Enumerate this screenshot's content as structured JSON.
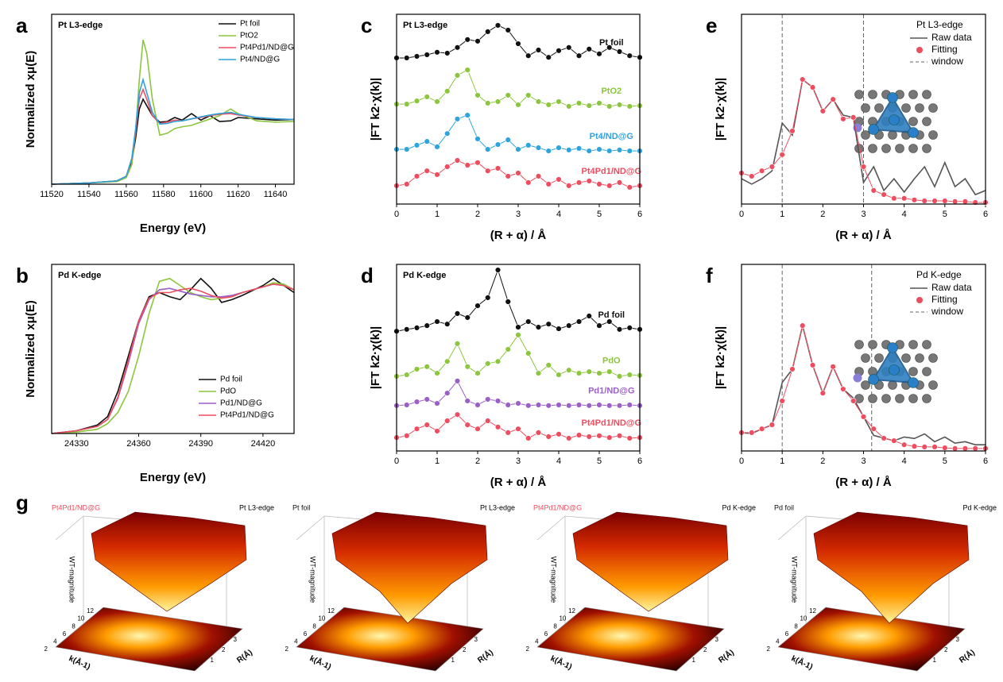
{
  "chart_data": [
    {
      "type": "line",
      "panel": "a",
      "title": "Pt L3-edge",
      "x_label": "Energy (eV)",
      "y_label": "Normalized xμ(E)",
      "xlim": [
        11520,
        11650
      ],
      "xticks": [
        11520,
        11540,
        11560,
        11580,
        11600,
        11620,
        11640
      ],
      "ylim": [
        0,
        2.6
      ],
      "legend": "upper right",
      "x": [
        11520,
        11540,
        11555,
        11560,
        11563,
        11565,
        11567,
        11569,
        11571,
        11574,
        11578,
        11582,
        11586,
        11590,
        11595,
        11600,
        11605,
        11610,
        11616,
        11620,
        11630,
        11640,
        11650
      ],
      "series": [
        {
          "name": "Pt foil",
          "color": "#111111",
          "values": [
            0,
            0.02,
            0.05,
            0.12,
            0.35,
            0.7,
            1.15,
            1.3,
            1.2,
            1.05,
            0.95,
            0.96,
            1.02,
            0.98,
            1.08,
            0.98,
            1.05,
            0.96,
            0.97,
            1.02,
            1.0,
            0.98,
            0.99
          ]
        },
        {
          "name": "PtO2",
          "color": "#8cc63e",
          "values": [
            0,
            0.02,
            0.04,
            0.1,
            0.3,
            0.8,
            1.6,
            2.21,
            2.0,
            1.3,
            0.75,
            0.78,
            0.85,
            0.88,
            0.9,
            0.95,
            1.0,
            1.05,
            1.15,
            1.08,
            0.97,
            0.95,
            0.96
          ]
        },
        {
          "name": "Pt4Pd1/ND@G",
          "color": "#ee4d5f",
          "values": [
            0,
            0.02,
            0.05,
            0.12,
            0.38,
            0.8,
            1.3,
            1.45,
            1.3,
            1.05,
            0.93,
            0.95,
            0.98,
            0.97,
            1.0,
            1.02,
            1.05,
            1.07,
            1.08,
            1.06,
            1.02,
            1.0,
            0.99
          ]
        },
        {
          "name": "Pt4/ND@G",
          "color": "#2da4dc",
          "values": [
            0,
            0.02,
            0.05,
            0.12,
            0.4,
            0.85,
            1.4,
            1.6,
            1.4,
            1.1,
            0.92,
            0.93,
            0.96,
            0.97,
            1.0,
            1.03,
            1.06,
            1.08,
            1.1,
            1.07,
            1.02,
            1.0,
            0.99
          ]
        }
      ]
    },
    {
      "type": "line",
      "panel": "b",
      "title": "Pd K-edge",
      "x_label": "Energy (eV)",
      "y_label": "Normalized xμ(E)",
      "xlim": [
        24318,
        24435
      ],
      "xticks": [
        24330,
        24360,
        24390,
        24420
      ],
      "ylim": [
        0,
        1.2
      ],
      "legend": "lower right",
      "x": [
        24318,
        24330,
        24340,
        24345,
        24350,
        24355,
        24360,
        24365,
        24370,
        24375,
        24380,
        24385,
        24390,
        24395,
        24400,
        24405,
        24410,
        24420,
        24425,
        24430,
        24435
      ],
      "series": [
        {
          "name": "Pd foil",
          "color": "#111111",
          "values": [
            0.0,
            0.02,
            0.06,
            0.12,
            0.3,
            0.55,
            0.8,
            0.97,
            1.0,
            0.97,
            0.95,
            1.02,
            1.1,
            1.03,
            0.93,
            0.95,
            0.98,
            1.05,
            1.1,
            1.05,
            1.0
          ]
        },
        {
          "name": "PdO",
          "color": "#8cc63e",
          "values": [
            0,
            0.01,
            0.03,
            0.07,
            0.15,
            0.3,
            0.55,
            0.85,
            1.08,
            1.1,
            1.05,
            1.0,
            0.97,
            0.95,
            0.96,
            0.98,
            1.0,
            1.04,
            1.07,
            1.06,
            1.02
          ]
        },
        {
          "name": "Pd1/ND@G",
          "color": "#9b5fc8",
          "values": [
            0,
            0.02,
            0.05,
            0.1,
            0.25,
            0.5,
            0.78,
            0.95,
            1.02,
            1.03,
            1.01,
            0.99,
            0.98,
            0.97,
            0.97,
            0.98,
            1.0,
            1.04,
            1.06,
            1.05,
            1.02
          ]
        },
        {
          "name": "Pt4Pd1/ND@G",
          "color": "#ee4d5f",
          "values": [
            0,
            0.02,
            0.05,
            0.1,
            0.26,
            0.52,
            0.8,
            0.96,
            1.0,
            1.0,
            1.02,
            1.03,
            1.01,
            0.98,
            0.96,
            0.97,
            1.0,
            1.04,
            1.06,
            1.05,
            1.02
          ]
        }
      ]
    },
    {
      "type": "line",
      "panel": "c",
      "title": "Pt L3-edge",
      "x_label": "(R + α) / Å",
      "y_label": "|FT k2·χ(k)|",
      "xlim": [
        0,
        6
      ],
      "xticks": [
        0,
        1,
        2,
        3,
        4,
        5,
        6
      ],
      "ylim": [
        0,
        6
      ],
      "x": [
        0,
        0.25,
        0.5,
        0.75,
        1,
        1.25,
        1.5,
        1.75,
        2,
        2.25,
        2.5,
        2.75,
        3,
        3.25,
        3.5,
        3.75,
        4,
        4.25,
        4.5,
        4.75,
        5,
        5.25,
        5.5,
        5.75,
        6
      ],
      "series": [
        {
          "name": "Pt foil",
          "color": "#111111",
          "marker": "circle",
          "values": [
            4.62,
            4.62,
            4.67,
            4.72,
            4.8,
            4.77,
            4.95,
            5.2,
            5.15,
            5.45,
            5.65,
            5.5,
            5.07,
            4.69,
            4.87,
            4.64,
            4.85,
            4.95,
            4.69,
            4.9,
            4.75,
            4.95,
            4.82,
            4.69,
            4.64
          ]
        },
        {
          "name": "PtO2",
          "color": "#8cc63e",
          "marker": "circle",
          "values": [
            3.16,
            3.16,
            3.26,
            3.39,
            3.24,
            3.57,
            4.07,
            4.24,
            3.44,
            3.19,
            3.24,
            3.44,
            3.14,
            3.44,
            3.24,
            3.14,
            3.24,
            3.09,
            3.19,
            3.11,
            3.19,
            3.09,
            3.14,
            3.09,
            3.11
          ]
        },
        {
          "name": "Pt4/ND@G",
          "color": "#2da4dc",
          "marker": "circle",
          "values": [
            1.73,
            1.73,
            1.86,
            1.98,
            1.81,
            2.23,
            2.69,
            2.81,
            2.06,
            1.73,
            1.88,
            2.03,
            1.73,
            1.86,
            1.78,
            1.68,
            1.78,
            1.71,
            1.76,
            1.68,
            1.73,
            1.68,
            1.71,
            1.68,
            1.68
          ]
        },
        {
          "name": "Pt4Pd1/ND@G",
          "color": "#ee4d5f",
          "marker": "circle",
          "values": [
            0.58,
            0.63,
            0.88,
            1.05,
            0.93,
            1.18,
            1.38,
            1.23,
            1.31,
            1.05,
            1.13,
            0.88,
            0.98,
            0.68,
            0.88,
            0.63,
            0.78,
            0.58,
            0.68,
            0.73,
            0.63,
            0.58,
            0.68,
            0.53,
            0.58
          ]
        }
      ]
    },
    {
      "type": "line",
      "panel": "d",
      "title": "Pd K-edge",
      "x_label": "(R + α) / Å",
      "y_label": "|FT k2·χ(k)|",
      "xlim": [
        0,
        6
      ],
      "xticks": [
        0,
        1,
        2,
        3,
        4,
        5,
        6
      ],
      "ylim": [
        0,
        6
      ],
      "x": [
        0,
        0.25,
        0.5,
        0.75,
        1,
        1.25,
        1.5,
        1.75,
        2,
        2.25,
        2.5,
        2.75,
        3,
        3.25,
        3.5,
        3.75,
        4,
        4.25,
        4.5,
        4.75,
        5,
        5.25,
        5.5,
        5.75,
        6
      ],
      "series": [
        {
          "name": "Pd foil",
          "color": "#111111",
          "marker": "circle",
          "values": [
            3.85,
            3.91,
            3.96,
            4.03,
            4.16,
            4.08,
            4.42,
            4.29,
            4.67,
            4.93,
            5.82,
            4.8,
            3.98,
            4.16,
            3.98,
            4.08,
            3.93,
            4.03,
            4.16,
            4.34,
            4.03,
            4.16,
            3.91,
            3.96,
            3.91
          ]
        },
        {
          "name": "PdO",
          "color": "#8cc63e",
          "marker": "circle",
          "values": [
            2.4,
            2.45,
            2.63,
            2.71,
            2.5,
            2.88,
            3.45,
            2.71,
            2.5,
            2.81,
            2.88,
            3.27,
            3.73,
            3.14,
            2.5,
            2.76,
            2.45,
            2.6,
            2.5,
            2.55,
            2.5,
            2.55,
            2.4,
            2.45,
            2.43
          ]
        },
        {
          "name": "Pd1/ND@G",
          "color": "#9b5fc8",
          "marker": "circle",
          "values": [
            1.46,
            1.48,
            1.58,
            1.66,
            1.53,
            1.86,
            2.25,
            1.61,
            1.48,
            1.66,
            1.61,
            1.48,
            1.53,
            1.46,
            1.48,
            1.46,
            1.48,
            1.46,
            1.48,
            1.46,
            1.48,
            1.46,
            1.46,
            1.48,
            1.46
          ]
        },
        {
          "name": "Pt4Pd1/ND@G",
          "color": "#ee4d5f",
          "marker": "circle",
          "values": [
            0.43,
            0.49,
            0.71,
            0.84,
            0.64,
            0.97,
            1.17,
            0.84,
            0.71,
            0.97,
            0.77,
            0.59,
            0.71,
            0.41,
            0.59,
            0.46,
            0.54,
            0.41,
            0.51,
            0.46,
            0.49,
            0.43,
            0.49,
            0.41,
            0.43
          ]
        }
      ]
    },
    {
      "type": "line",
      "panel": "e",
      "title": "Pt L3-edge",
      "x_label": "(R + α) / Å",
      "y_label": "|FT k2·χ(k)|",
      "xlim": [
        0,
        6
      ],
      "xticks": [
        0,
        1,
        2,
        3,
        4,
        5,
        6
      ],
      "ylim": [
        0,
        6
      ],
      "legend": "upper right",
      "window": {
        "name": "window",
        "x": [
          1.0,
          3.0
        ]
      },
      "x": [
        0,
        0.25,
        0.5,
        0.75,
        1,
        1.25,
        1.5,
        1.75,
        2,
        2.25,
        2.5,
        2.75,
        3,
        3.25,
        3.5,
        3.75,
        4,
        4.25,
        4.5,
        4.75,
        5,
        5.25,
        5.5,
        5.75,
        6
      ],
      "series": [
        {
          "name": "Raw data",
          "color": "#555555",
          "values": [
            0.8,
            0.63,
            0.8,
            1.05,
            2.56,
            2.18,
            3.94,
            3.69,
            2.94,
            3.31,
            2.81,
            2.74,
            0.68,
            1.18,
            0.43,
            0.8,
            0.38,
            0.8,
            1.18,
            0.55,
            1.31,
            0.55,
            0.8,
            0.3,
            0.43
          ]
        },
        {
          "name": "Fitting",
          "color": "#ee4d5f",
          "marker": "circle",
          "values": [
            0.98,
            0.88,
            1.05,
            1.18,
            1.56,
            2.31,
            3.94,
            3.69,
            2.94,
            3.31,
            2.69,
            2.74,
            1.18,
            0.43,
            0.3,
            0.18,
            0.18,
            0.13,
            0.1,
            0.1,
            0.1,
            0.08,
            0.08,
            0.05,
            0.05
          ]
        }
      ]
    },
    {
      "type": "line",
      "panel": "f",
      "title": "Pd K-edge",
      "x_label": "(R + α) / Å",
      "y_label": "|FT k2·χ(k)|",
      "xlim": [
        0,
        6
      ],
      "xticks": [
        0,
        1,
        2,
        3,
        4,
        5,
        6
      ],
      "ylim": [
        0,
        6
      ],
      "legend": "upper right",
      "window": {
        "name": "window",
        "x": [
          1.0,
          3.2
        ]
      },
      "x": [
        0,
        0.25,
        0.5,
        0.75,
        1,
        1.25,
        1.5,
        1.75,
        2,
        2.25,
        2.5,
        2.75,
        3,
        3.25,
        3.5,
        3.75,
        4,
        4.25,
        4.5,
        4.75,
        5,
        5.25,
        5.5,
        5.75,
        6
      ],
      "series": [
        {
          "name": "Raw data",
          "color": "#555555",
          "values": [
            0.59,
            0.56,
            0.71,
            0.84,
            2.2,
            2.63,
            4.03,
            2.76,
            1.86,
            2.71,
            1.99,
            1.7,
            1.1,
            0.5,
            0.41,
            0.33,
            0.45,
            0.4,
            0.55,
            0.3,
            0.45,
            0.25,
            0.3,
            0.2,
            0.2
          ]
        },
        {
          "name": "Fitting",
          "color": "#ee4d5f",
          "marker": "circle",
          "values": [
            0.59,
            0.59,
            0.71,
            0.84,
            1.61,
            2.63,
            4.03,
            2.76,
            1.86,
            2.71,
            1.99,
            1.61,
            1.1,
            0.71,
            0.41,
            0.33,
            0.2,
            0.15,
            0.13,
            0.13,
            0.1,
            0.08,
            0.08,
            0.08,
            0.08
          ]
        }
      ]
    }
  ],
  "wavelet": {
    "panel": "g",
    "z_label": "WT-magnitude",
    "k_label": "k(Å-1)",
    "r_label": "R(Å)",
    "k_ticks": [
      12,
      10,
      8,
      6,
      4,
      2
    ],
    "r_ticks": [
      1,
      2,
      3
    ],
    "plots": [
      {
        "sample": "Pt4Pd1/ND@G",
        "color": "#ee4d5f",
        "edge": "Pt L3-edge"
      },
      {
        "sample": "Pt foil",
        "color": "#111111",
        "edge": "Pt L3-edge"
      },
      {
        "sample": "Pt4Pd1/ND@G",
        "color": "#ee4d5f",
        "edge": "Pd K-edge"
      },
      {
        "sample": "Pd foil",
        "color": "#111111",
        "edge": "Pd K-edge"
      }
    ]
  }
}
